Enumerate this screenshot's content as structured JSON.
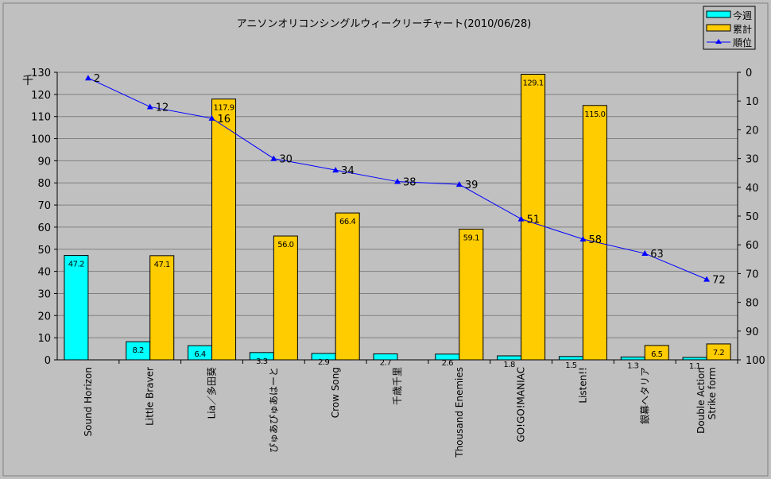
{
  "chart_data": {
    "type": "bar",
    "title": "アニソンオリコンシングルウィークリーチャート(2010/06/28)",
    "ylabel": "千",
    "ylim": [
      0,
      130
    ],
    "y_ticks": [
      0,
      10,
      20,
      30,
      40,
      50,
      60,
      70,
      80,
      90,
      100,
      110,
      120,
      130
    ],
    "y2lim": [
      100,
      0
    ],
    "y2_ticks": [
      0,
      10,
      20,
      30,
      40,
      50,
      60,
      70,
      80,
      90,
      100
    ],
    "grid": true,
    "legend_position": "top-right",
    "categories": [
      "Sound Horizon",
      "Little Braver",
      "Lia／多田葵",
      "ぴゅあぴゅあはーと",
      "Crow Song",
      "千歳千里",
      "Thousand Enemies",
      "GO!GO!MANIAC",
      "Listen!!",
      "銀幕へタリア",
      "Double Action Strike form"
    ],
    "series": [
      {
        "name": "今週",
        "type": "bar",
        "axis": "left",
        "color": "#00ffff",
        "values": [
          47.2,
          8.2,
          6.4,
          3.3,
          2.9,
          2.7,
          2.6,
          1.8,
          1.5,
          1.3,
          1.1
        ],
        "labels": [
          "47.2",
          "8.2",
          "6.4",
          "3.3",
          "2.9",
          "2.7",
          "2.6",
          "1.8",
          "1.5",
          "1.3",
          "1.1"
        ]
      },
      {
        "name": "累計",
        "type": "bar",
        "axis": "left",
        "color": "#ffcc00",
        "values": [
          null,
          47.1,
          117.9,
          56.0,
          66.4,
          null,
          59.1,
          129.1,
          115.0,
          6.5,
          7.2
        ],
        "labels": [
          "",
          "47.1",
          "117.9",
          "56.0",
          "66.4",
          "",
          "59.1",
          "129.1",
          "115.0",
          "6.5",
          "7.2"
        ]
      },
      {
        "name": "順位",
        "type": "line",
        "axis": "right",
        "color": "#0000ff",
        "values": [
          2,
          12,
          16,
          30,
          34,
          38,
          39,
          51,
          58,
          63,
          72
        ]
      }
    ]
  }
}
